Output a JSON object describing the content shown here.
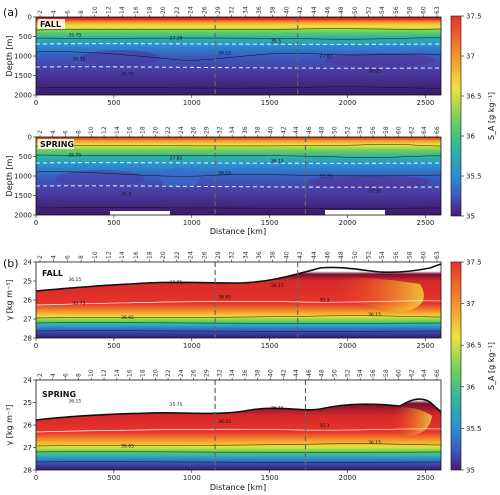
{
  "chart_data": [
    {
      "panel": "(a)",
      "type": "heatmap",
      "season": "FALL",
      "xlabel": "",
      "ylabel": "Depth [m]",
      "xlim": [
        0,
        2600
      ],
      "ylim": [
        2000,
        0
      ],
      "x_ticks": [
        "0",
        "500",
        "1000",
        "1500",
        "2000",
        "2500"
      ],
      "y_ticks": [
        "0",
        "500",
        "1000",
        "1500",
        "2000"
      ],
      "stations": [
        "2",
        "4",
        "6",
        "8",
        "10",
        "12",
        "14",
        "16",
        "18",
        "20",
        "22",
        "24",
        "26",
        "29",
        "32",
        "34",
        "36",
        "38",
        "40",
        "42",
        "44",
        "46",
        "48",
        "50",
        "52",
        "54",
        "56",
        "58",
        "60",
        "63"
      ],
      "contour_labels": [
        "35.75",
        "36.15",
        "36.65",
        "27.38",
        "27.82",
        "35.75",
        "35.3",
        "36.35"
      ],
      "vlines_km": [
        1150,
        1680
      ]
    },
    {
      "panel": "",
      "type": "heatmap",
      "season": "SPRING",
      "xlabel": "Distance [km]",
      "ylabel": "Depth [m]",
      "xlim": [
        0,
        2600
      ],
      "ylim": [
        2000,
        0
      ],
      "x_ticks": [
        "0",
        "500",
        "1000",
        "1500",
        "2000",
        "2500"
      ],
      "y_ticks": [
        "0",
        "500",
        "1000",
        "1500",
        "2000"
      ],
      "stations": [
        "2",
        "4",
        "6",
        "8",
        "10",
        "12",
        "14",
        "16",
        "18",
        "20",
        "22",
        "24",
        "26",
        "29",
        "32",
        "34",
        "36",
        "38",
        "40",
        "42",
        "44",
        "46",
        "48",
        "50",
        "52",
        "54",
        "56",
        "58",
        "60",
        "62",
        "64",
        "66"
      ],
      "contour_labels": [
        "35.75",
        "36.15",
        "27.38",
        "27.82",
        "35.75",
        "35.3",
        "36.15"
      ],
      "vlines_km": [
        1150,
        1730
      ]
    },
    {
      "panel": "(b)",
      "type": "heatmap",
      "season": "FALL",
      "xlabel": "",
      "ylabel": "γ [kg m⁻³]",
      "xlim": [
        0,
        2600
      ],
      "ylim": [
        28,
        24
      ],
      "x_ticks": [
        "0",
        "500",
        "1000",
        "1500",
        "2000",
        "2500"
      ],
      "y_ticks": [
        "24",
        "25",
        "26",
        "27",
        "28"
      ],
      "stations": [
        "2",
        "4",
        "6",
        "8",
        "10",
        "12",
        "14",
        "16",
        "18",
        "20",
        "22",
        "24",
        "26",
        "29",
        "32",
        "34",
        "36",
        "38",
        "40",
        "42",
        "44",
        "46",
        "48",
        "50",
        "52",
        "54",
        "56",
        "58",
        "60",
        "63"
      ],
      "contour_labels": [
        "36.15",
        "36.65",
        "36.15",
        "35.75",
        "35.3",
        "36.65",
        "36.15",
        "35.75"
      ],
      "vlines_km": [
        1150,
        1680
      ]
    },
    {
      "panel": "",
      "type": "heatmap",
      "season": "SPRING",
      "xlabel": "Distance [km]",
      "ylabel": "γ [kg m⁻³]",
      "xlim": [
        0,
        2600
      ],
      "ylim": [
        28,
        24
      ],
      "x_ticks": [
        "0",
        "500",
        "1000",
        "1500",
        "2000",
        "2500"
      ],
      "y_ticks": [
        "24",
        "25",
        "26",
        "27",
        "28"
      ],
      "stations": [
        "2",
        "4",
        "6",
        "8",
        "10",
        "12",
        "14",
        "16",
        "18",
        "20",
        "22",
        "24",
        "26",
        "29",
        "32",
        "34",
        "36",
        "38",
        "40",
        "42",
        "44",
        "46",
        "48",
        "50",
        "52",
        "54",
        "56",
        "58",
        "60",
        "62",
        "64",
        "66"
      ],
      "contour_labels": [
        "36.15",
        "36.65",
        "36.15",
        "35.75",
        "35.3",
        "36.65",
        "36.15"
      ],
      "vlines_km": [
        1150,
        1730
      ]
    }
  ],
  "colorbars": [
    {
      "label": "S_A [g kg⁻¹]",
      "range": [
        35,
        37.5
      ],
      "ticks": [
        "37.5",
        "37",
        "36.5",
        "36",
        "35.5",
        "35"
      ]
    },
    {
      "label": "S_A [g kg⁻¹]",
      "range": [
        35,
        37.5
      ],
      "ticks": [
        "37.5",
        "37",
        "36.5",
        "36",
        "35.5",
        "35"
      ]
    }
  ],
  "colors": {
    "low": "#4b1a78",
    "mid_low": "#2a8fd0",
    "mid": "#3fc56a",
    "mid_high": "#f2e23a",
    "high": "#e8332a",
    "top": "#6a1030",
    "dashed_line": "#888888",
    "white_contour": "#ffffff"
  }
}
